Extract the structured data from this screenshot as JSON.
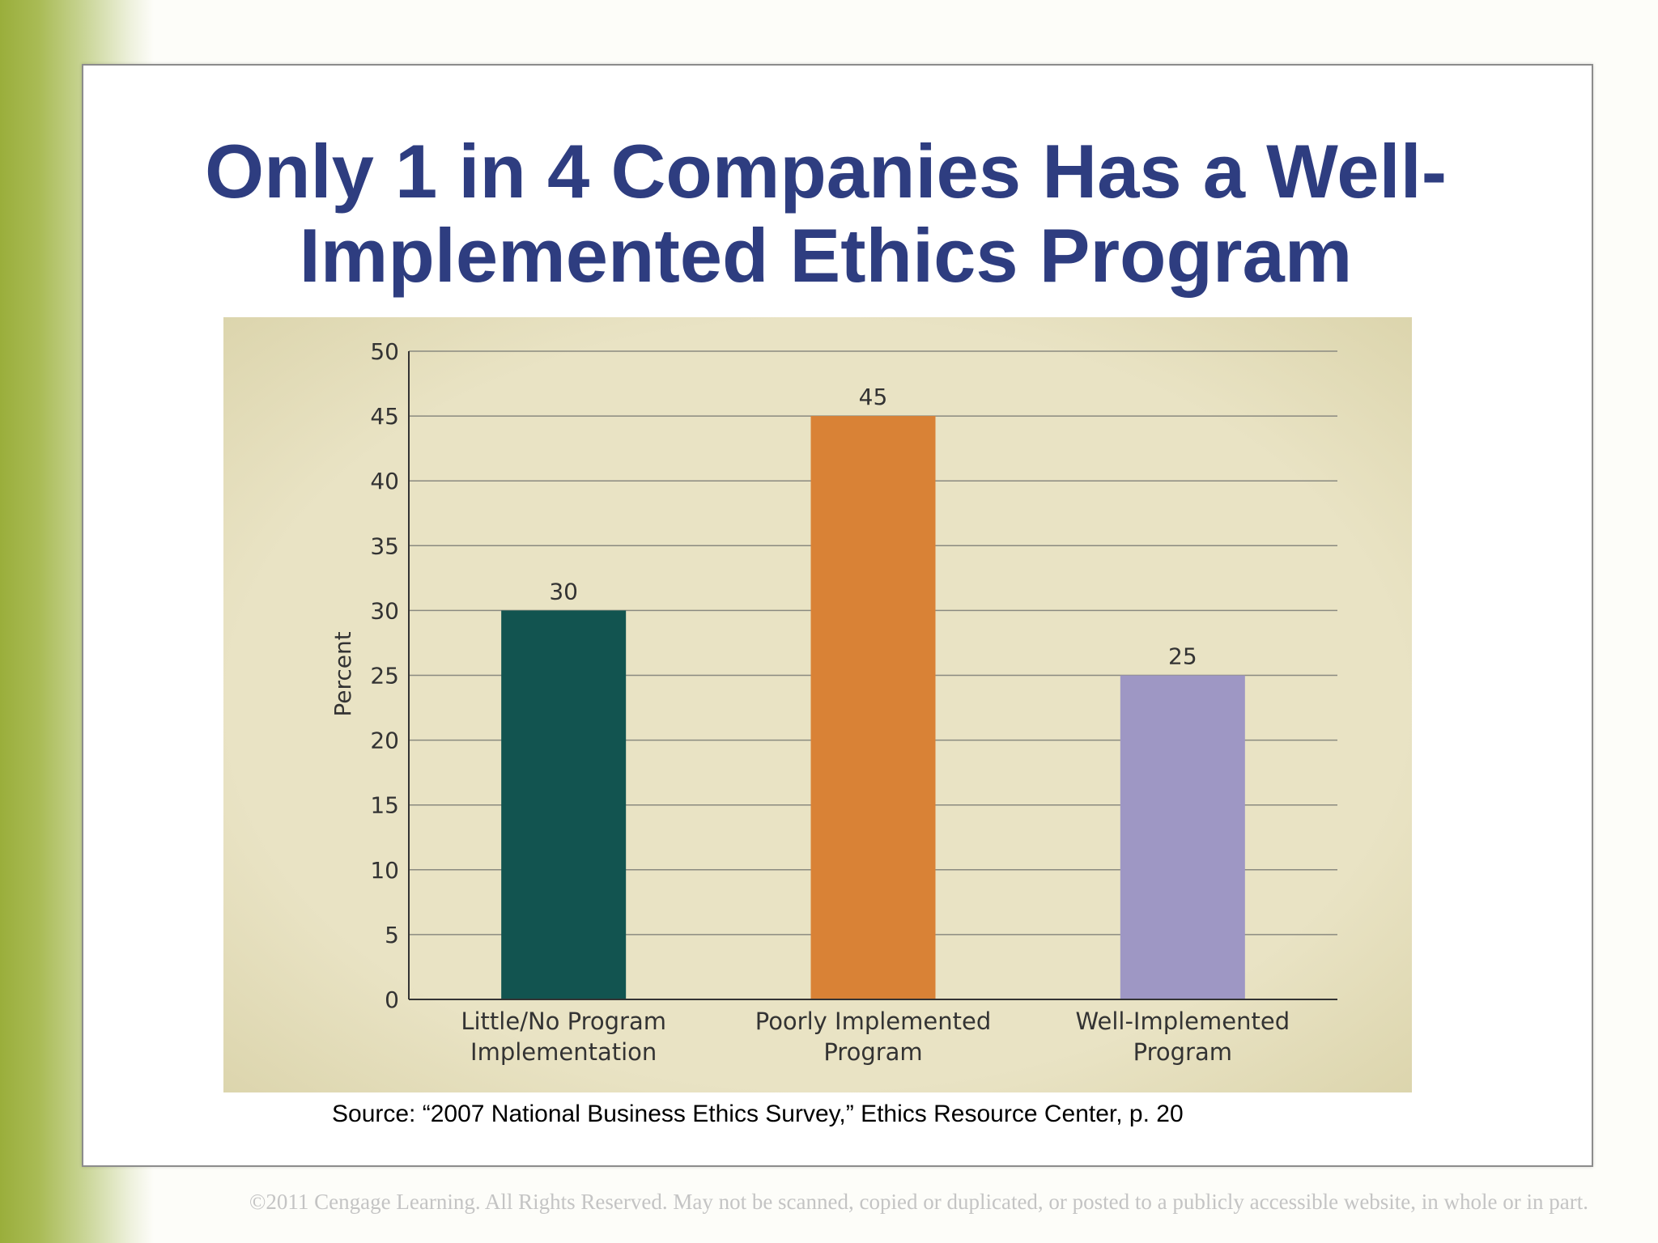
{
  "slide": {
    "title_line1": "Only 1 in 4 Companies Has a Well-",
    "title_line2": "Implemented Ethics Program",
    "source": "Source: “2007 National Business Ethics Survey,” Ethics Resource Center, p. 20",
    "copyright": "©2011 Cengage Learning. All Rights Reserved. May not be scanned, copied or duplicated, or posted to a publicly accessible website, in whole or in part."
  },
  "colors": {
    "title": "#2e3d80",
    "accent_green": "#9aae3b",
    "panel_bg": "#e9e3c4"
  },
  "chart_data": {
    "type": "bar",
    "categories": [
      [
        "Little/No Program",
        "Implementation"
      ],
      [
        "Poorly Implemented",
        "Program"
      ],
      [
        "Well-Implemented",
        "Program"
      ]
    ],
    "values": [
      30,
      45,
      25
    ],
    "colors": [
      "#125450",
      "#d98236",
      "#9e97c4"
    ],
    "data_labels": [
      "30",
      "45",
      "25"
    ],
    "ylabel": "Percent",
    "xlabel": "",
    "ylim": [
      0,
      50
    ],
    "yticks": [
      0,
      5,
      10,
      15,
      20,
      25,
      30,
      35,
      40,
      45,
      50
    ],
    "grid": true
  }
}
